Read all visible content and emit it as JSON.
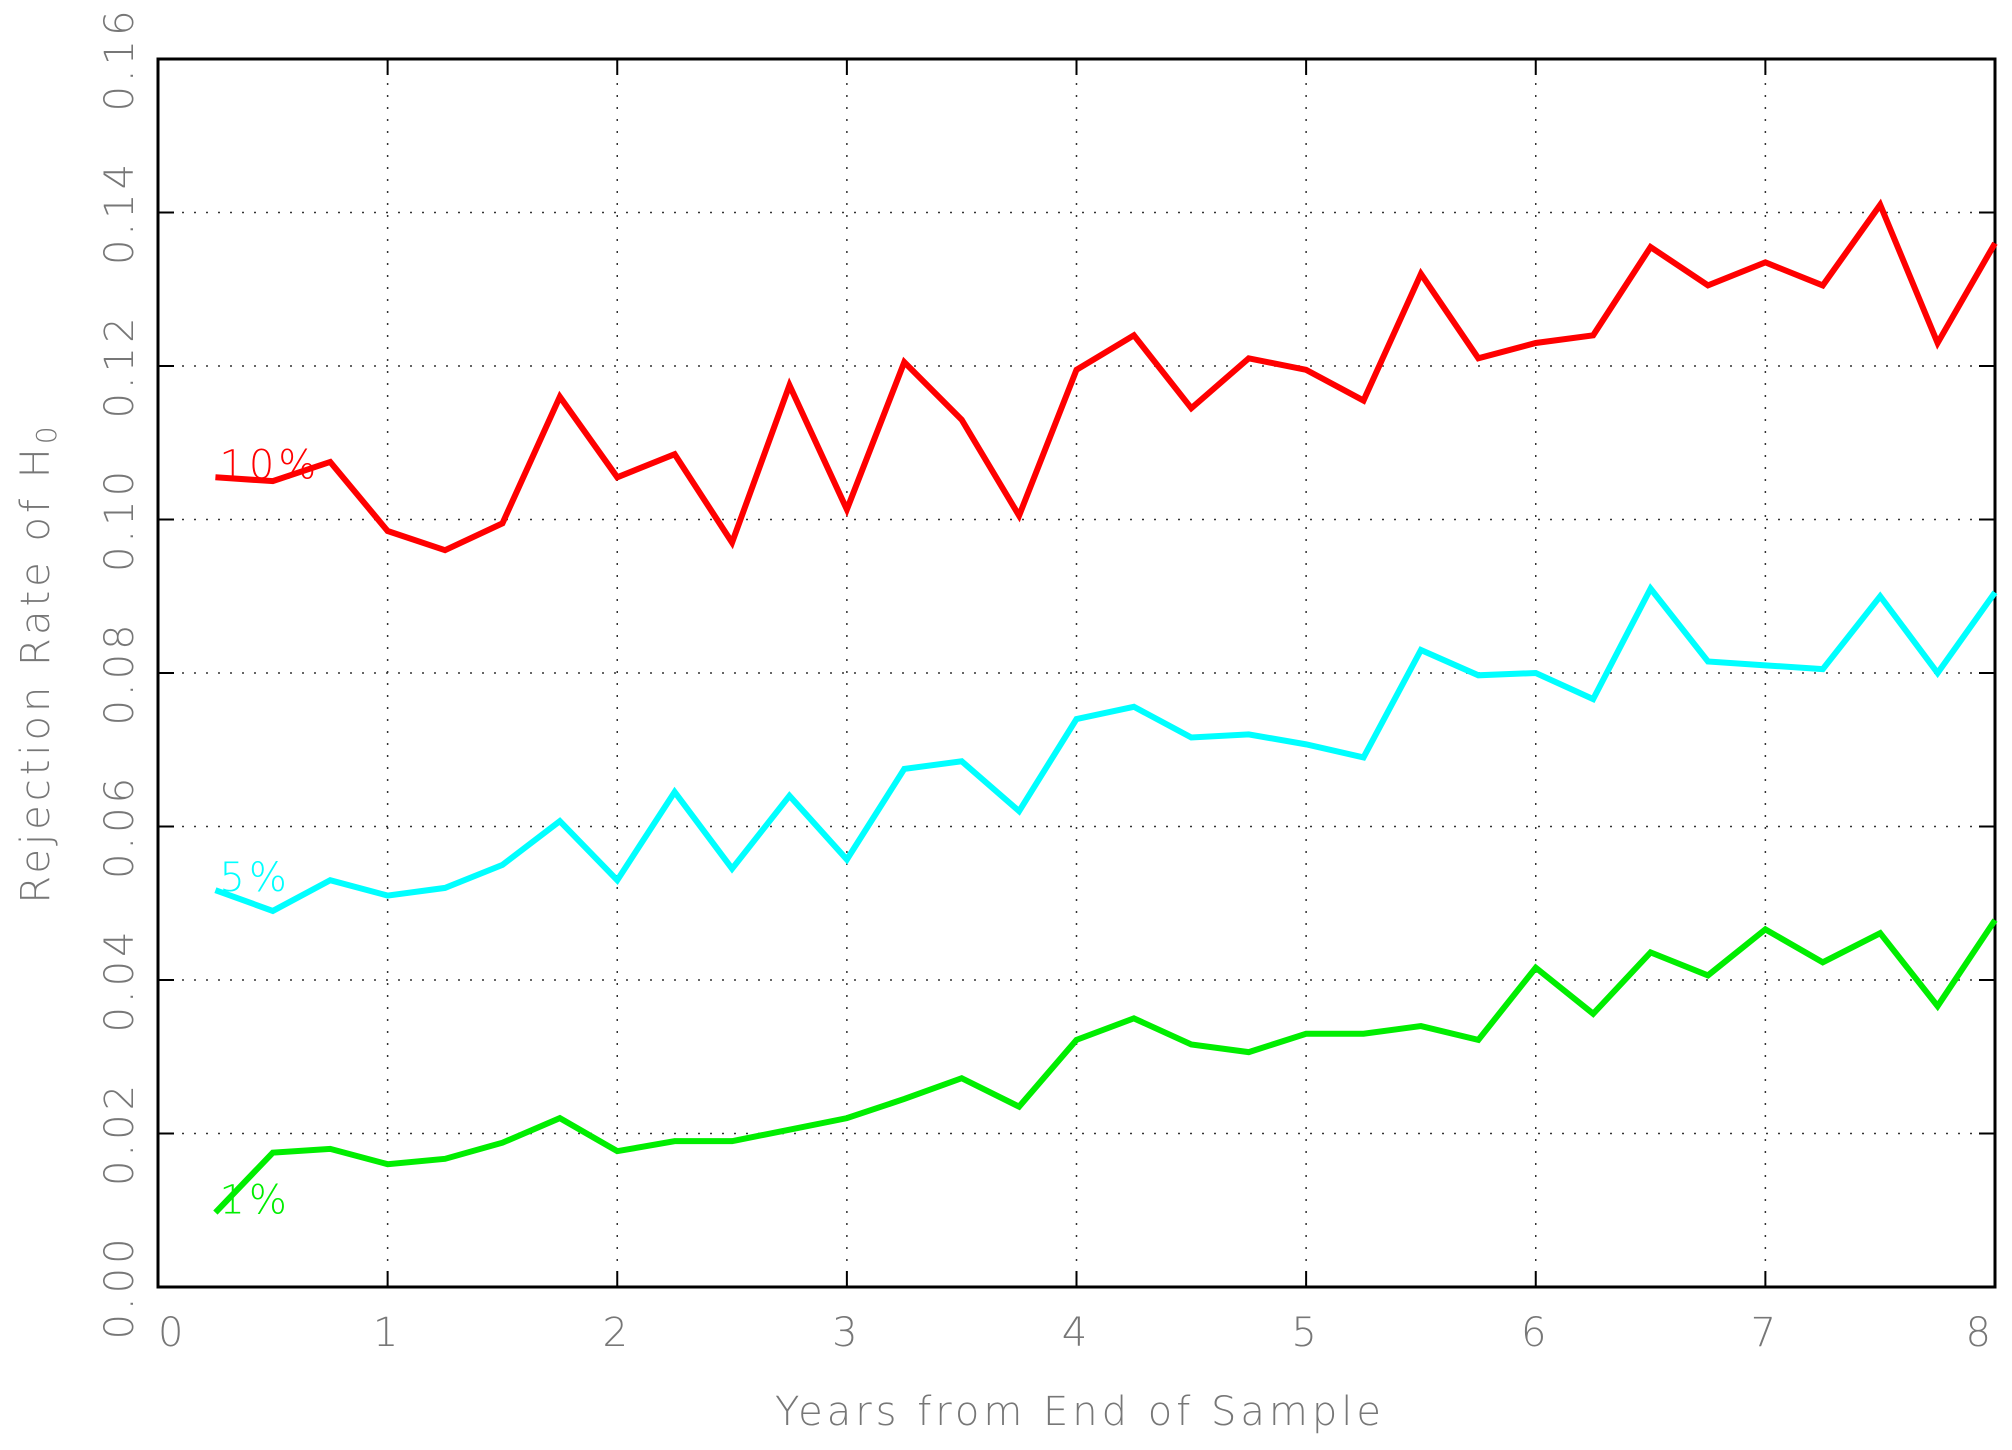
{
  "chart_data": {
    "type": "line",
    "ylabel": {
      "text": "Rejection Rate of H",
      "subscript": "0"
    },
    "xlabel": "Years from End of Sample",
    "x": [
      0.25,
      0.5,
      0.75,
      1,
      1.25,
      1.5,
      1.75,
      2,
      2.25,
      2.5,
      2.75,
      3,
      3.25,
      3.5,
      3.75,
      4,
      4.25,
      4.5,
      4.75,
      5,
      5.25,
      5.5,
      5.75,
      6,
      6.25,
      6.5,
      6.75,
      7,
      7.25,
      7.5,
      7.75,
      8
    ],
    "series": [
      {
        "name": "10%",
        "color": "#ff0000",
        "values": [
          0.1055,
          0.105,
          0.1075,
          0.0985,
          0.096,
          0.0995,
          0.116,
          0.1055,
          0.1085,
          0.097,
          0.1175,
          0.1013,
          0.1205,
          0.113,
          0.1005,
          0.1195,
          0.124,
          0.1145,
          0.121,
          0.1195,
          0.1155,
          0.132,
          0.121,
          0.123,
          0.124,
          0.1355,
          0.1305,
          0.1335,
          0.1305,
          0.141,
          0.123,
          0.136
        ]
      },
      {
        "name": "5%",
        "color": "#00ffff",
        "values": [
          0.0517,
          0.049,
          0.053,
          0.051,
          0.052,
          0.055,
          0.0607,
          0.053,
          0.0645,
          0.0545,
          0.064,
          0.0557,
          0.0675,
          0.0685,
          0.062,
          0.074,
          0.0756,
          0.0716,
          0.072,
          0.0707,
          0.069,
          0.083,
          0.0797,
          0.08,
          0.0766,
          0.091,
          0.0815,
          0.081,
          0.0805,
          0.09,
          0.08,
          0.0905
        ]
      },
      {
        "name": "1%",
        "color": "#00ee00",
        "values": [
          0.0097,
          0.0175,
          0.018,
          0.016,
          0.0167,
          0.0188,
          0.022,
          0.0177,
          0.019,
          0.019,
          0.0205,
          0.022,
          0.0245,
          0.0272,
          0.0235,
          0.0322,
          0.035,
          0.0316,
          0.0306,
          0.033,
          0.033,
          0.034,
          0.0322,
          0.0416,
          0.0356,
          0.0436,
          0.0406,
          0.0466,
          0.0423,
          0.0461,
          0.0366,
          0.0478
        ]
      }
    ],
    "xlim": [
      0,
      8
    ],
    "xticks": [
      0,
      1,
      2,
      3,
      4,
      5,
      6,
      7,
      8
    ],
    "ylim": [
      0,
      0.16
    ],
    "yticks": [
      {
        "value": 0,
        "label": "0.00"
      },
      {
        "value": 0.02,
        "label": "0.02"
      },
      {
        "value": 0.04,
        "label": "0.04"
      },
      {
        "value": 0.06,
        "label": "0.06"
      },
      {
        "value": 0.08,
        "label": "0.08"
      },
      {
        "value": 0.1,
        "label": "0.10"
      },
      {
        "value": 0.12,
        "label": "0.12"
      },
      {
        "value": 0.14,
        "label": "0.14"
      },
      {
        "value": 0.16,
        "label": "0.16"
      }
    ],
    "grid": true
  }
}
